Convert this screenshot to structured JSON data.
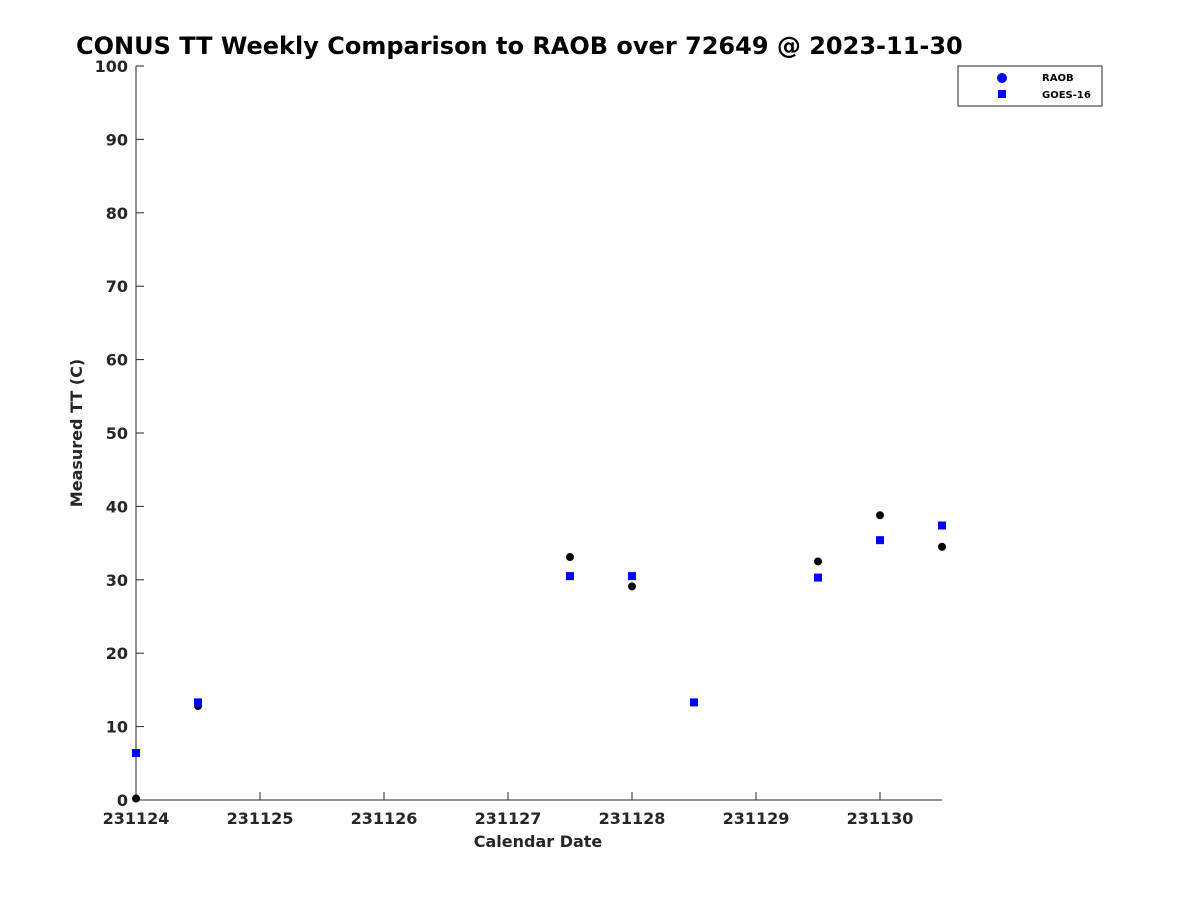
{
  "chart_data": {
    "type": "scatter",
    "title": "CONUS TT Weekly Comparison to RAOB over 72649 @ 2023-11-30",
    "xlabel": "Calendar Date",
    "ylabel": "Measured TT (C)",
    "xlim": [
      "2023-11-24T00:00",
      "2023-11-30T12:00"
    ],
    "ylim": [
      0,
      100
    ],
    "x_ticks": [
      {
        "date": "2023-11-24",
        "label": "231124"
      },
      {
        "date": "2023-11-25",
        "label": "231125"
      },
      {
        "date": "2023-11-26",
        "label": "231126"
      },
      {
        "date": "2023-11-27",
        "label": "231127"
      },
      {
        "date": "2023-11-28",
        "label": "231128"
      },
      {
        "date": "2023-11-29",
        "label": "231129"
      },
      {
        "date": "2023-11-30",
        "label": "231130"
      }
    ],
    "y_ticks": [
      0,
      10,
      20,
      30,
      40,
      50,
      60,
      70,
      80,
      90,
      100
    ],
    "grid": false,
    "legend_position": "top-right",
    "series": [
      {
        "name": "RAOB",
        "marker": "circle",
        "color": "#000000",
        "legend_color": "#0000ff",
        "points": [
          {
            "x": "2023-11-24T00:00",
            "y": 0.2
          },
          {
            "x": "2023-11-24T12:00",
            "y": 12.8
          },
          {
            "x": "2023-11-27T12:00",
            "y": 33.1
          },
          {
            "x": "2023-11-28T00:00",
            "y": 29.1
          },
          {
            "x": "2023-11-29T12:00",
            "y": 32.5
          },
          {
            "x": "2023-11-30T00:00",
            "y": 38.8
          },
          {
            "x": "2023-11-30T12:00",
            "y": 34.5
          }
        ]
      },
      {
        "name": "GOES-16",
        "marker": "square",
        "color": "#0000ff",
        "legend_color": "#0000ff",
        "points": [
          {
            "x": "2023-11-24T00:00",
            "y": 6.4
          },
          {
            "x": "2023-11-24T12:00",
            "y": 13.3
          },
          {
            "x": "2023-11-27T12:00",
            "y": 30.5
          },
          {
            "x": "2023-11-28T00:00",
            "y": 30.5
          },
          {
            "x": "2023-11-28T12:00",
            "y": 13.3
          },
          {
            "x": "2023-11-29T12:00",
            "y": 30.3
          },
          {
            "x": "2023-11-30T00:00",
            "y": 35.4
          },
          {
            "x": "2023-11-30T12:00",
            "y": 37.4
          }
        ]
      }
    ]
  }
}
